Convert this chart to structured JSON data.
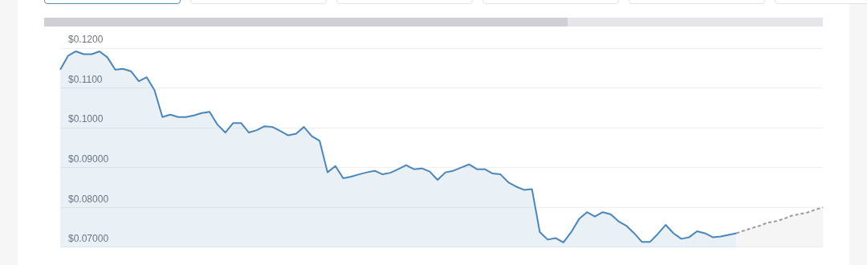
{
  "chart_data": {
    "type": "area",
    "categories": [
      null,
      null,
      null,
      null,
      null,
      null,
      null,
      null,
      null,
      null,
      null,
      null,
      null,
      null,
      null,
      null,
      null,
      null,
      null,
      null,
      null,
      null,
      null,
      null,
      null,
      null,
      null,
      null,
      null,
      null,
      null,
      null,
      null,
      null,
      null,
      null,
      null,
      null,
      null,
      null,
      null,
      null,
      null,
      null,
      null,
      null,
      null,
      null,
      null,
      null,
      null,
      null,
      null,
      null,
      null,
      null,
      null,
      null,
      null,
      null,
      null,
      null,
      null,
      null,
      null,
      null,
      null,
      null,
      null,
      null,
      null,
      null,
      null,
      null,
      null,
      null,
      null,
      null,
      null,
      null,
      null,
      null,
      null,
      null,
      null,
      null,
      null,
      null,
      null,
      null,
      null,
      null,
      null,
      null,
      null,
      null,
      null,
      null
    ],
    "series": [
      {
        "color": "#4a86b9",
        "line_style": "solid",
        "values": [
          0.1146,
          0.1181,
          0.1192,
          0.1185,
          0.1185,
          0.1192,
          0.1177,
          0.1146,
          0.1148,
          0.1142,
          0.1117,
          0.1127,
          0.1094,
          0.1027,
          0.1033,
          0.1027,
          0.1027,
          0.1031,
          0.1037,
          0.104,
          0.1008,
          0.0988,
          0.1012,
          0.1012,
          0.0988,
          0.0994,
          0.1004,
          0.1002,
          0.0992,
          0.0981,
          0.0985,
          0.1002,
          0.0979,
          0.0967,
          0.0888,
          0.0904,
          0.0873,
          0.0877,
          0.0883,
          0.0888,
          0.0892,
          0.0883,
          0.0887,
          0.0896,
          0.0906,
          0.0896,
          0.0898,
          0.089,
          0.0869,
          0.0888,
          0.0892,
          0.09,
          0.0908,
          0.0896,
          0.0896,
          0.0885,
          0.0883,
          0.0863,
          0.0852,
          0.0844,
          0.0846,
          0.0738,
          0.0719,
          0.0723,
          0.0712,
          0.0738,
          0.0771,
          0.0788,
          0.0777,
          0.0788,
          0.0783,
          0.0765,
          0.0754,
          0.0735,
          0.0713,
          0.0713,
          0.0733,
          0.0756,
          0.0735,
          0.0721,
          0.0725,
          0.074,
          0.0735,
          0.0725,
          0.0727,
          0.0731,
          0.0735,
          null,
          null,
          null,
          null,
          null,
          null,
          null,
          null,
          null,
          null,
          null
        ]
      },
      {
        "color": "#9a9aa8",
        "line_style": "dashed",
        "values": [
          null,
          null,
          null,
          null,
          null,
          null,
          null,
          null,
          null,
          null,
          null,
          null,
          null,
          null,
          null,
          null,
          null,
          null,
          null,
          null,
          null,
          null,
          null,
          null,
          null,
          null,
          null,
          null,
          null,
          null,
          null,
          null,
          null,
          null,
          null,
          null,
          null,
          null,
          null,
          null,
          null,
          null,
          null,
          null,
          null,
          null,
          null,
          null,
          null,
          null,
          null,
          null,
          null,
          null,
          null,
          null,
          null,
          null,
          null,
          null,
          null,
          null,
          null,
          null,
          null,
          null,
          null,
          null,
          null,
          null,
          null,
          null,
          null,
          null,
          null,
          null,
          null,
          null,
          null,
          null,
          null,
          null,
          null,
          null,
          null,
          null,
          0.0735,
          0.0742,
          0.0748,
          0.0754,
          0.0762,
          0.0765,
          0.0771,
          0.0779,
          0.0783,
          0.0787,
          0.0794,
          0.08
        ]
      }
    ],
    "ylim": [
      0.07,
      0.12
    ],
    "yticks": [
      {
        "value": 0.07,
        "label": "$0.07000"
      },
      {
        "value": 0.08,
        "label": "$0.08000"
      },
      {
        "value": 0.09,
        "label": "$0.09000"
      },
      {
        "value": 0.1,
        "label": "$0.1000"
      },
      {
        "value": 0.11,
        "label": "$0.1100"
      },
      {
        "value": 0.12,
        "label": "$0.1200"
      }
    ],
    "grid": "y",
    "tick_labels": "y",
    "legend": false,
    "marker": "none"
  }
}
